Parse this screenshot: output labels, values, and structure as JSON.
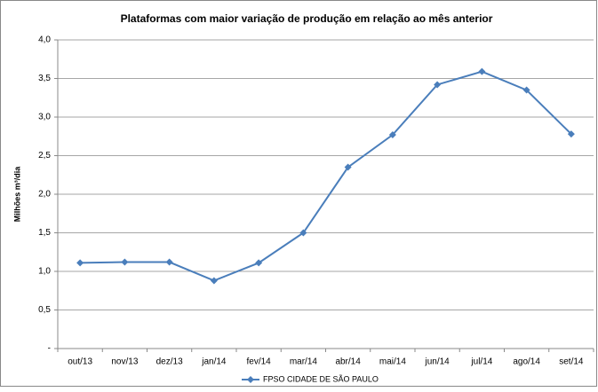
{
  "chart_data": {
    "type": "line",
    "title": "Plataformas com maior variação de produção em relação ao mês anterior",
    "y_label": "Milhões m³/dia",
    "categories": [
      "out/13",
      "nov/13",
      "dez/13",
      "jan/14",
      "fev/14",
      "mar/14",
      "abr/14",
      "mai/14",
      "jun/14",
      "jul/14",
      "ago/14",
      "set/14"
    ],
    "series": [
      {
        "name": "FPSO CIDADE DE SÃO PAULO",
        "color": "#4a7ebb",
        "values": [
          1.11,
          1.12,
          1.12,
          0.88,
          1.11,
          1.5,
          2.35,
          2.77,
          3.42,
          3.59,
          3.35,
          2.78
        ]
      }
    ],
    "ylim": [
      0,
      4
    ],
    "yticks": [
      {
        "value": 0,
        "label": "-"
      },
      {
        "value": 0.5,
        "label": "0,5"
      },
      {
        "value": 1,
        "label": "1,0"
      },
      {
        "value": 1.5,
        "label": "1,5"
      },
      {
        "value": 2,
        "label": "2,0"
      },
      {
        "value": 2.5,
        "label": "2,5"
      },
      {
        "value": 3,
        "label": "3,0"
      },
      {
        "value": 3.5,
        "label": "3,5"
      },
      {
        "value": 4,
        "label": "4,0"
      }
    ],
    "grid": true,
    "legend": "bottom"
  }
}
